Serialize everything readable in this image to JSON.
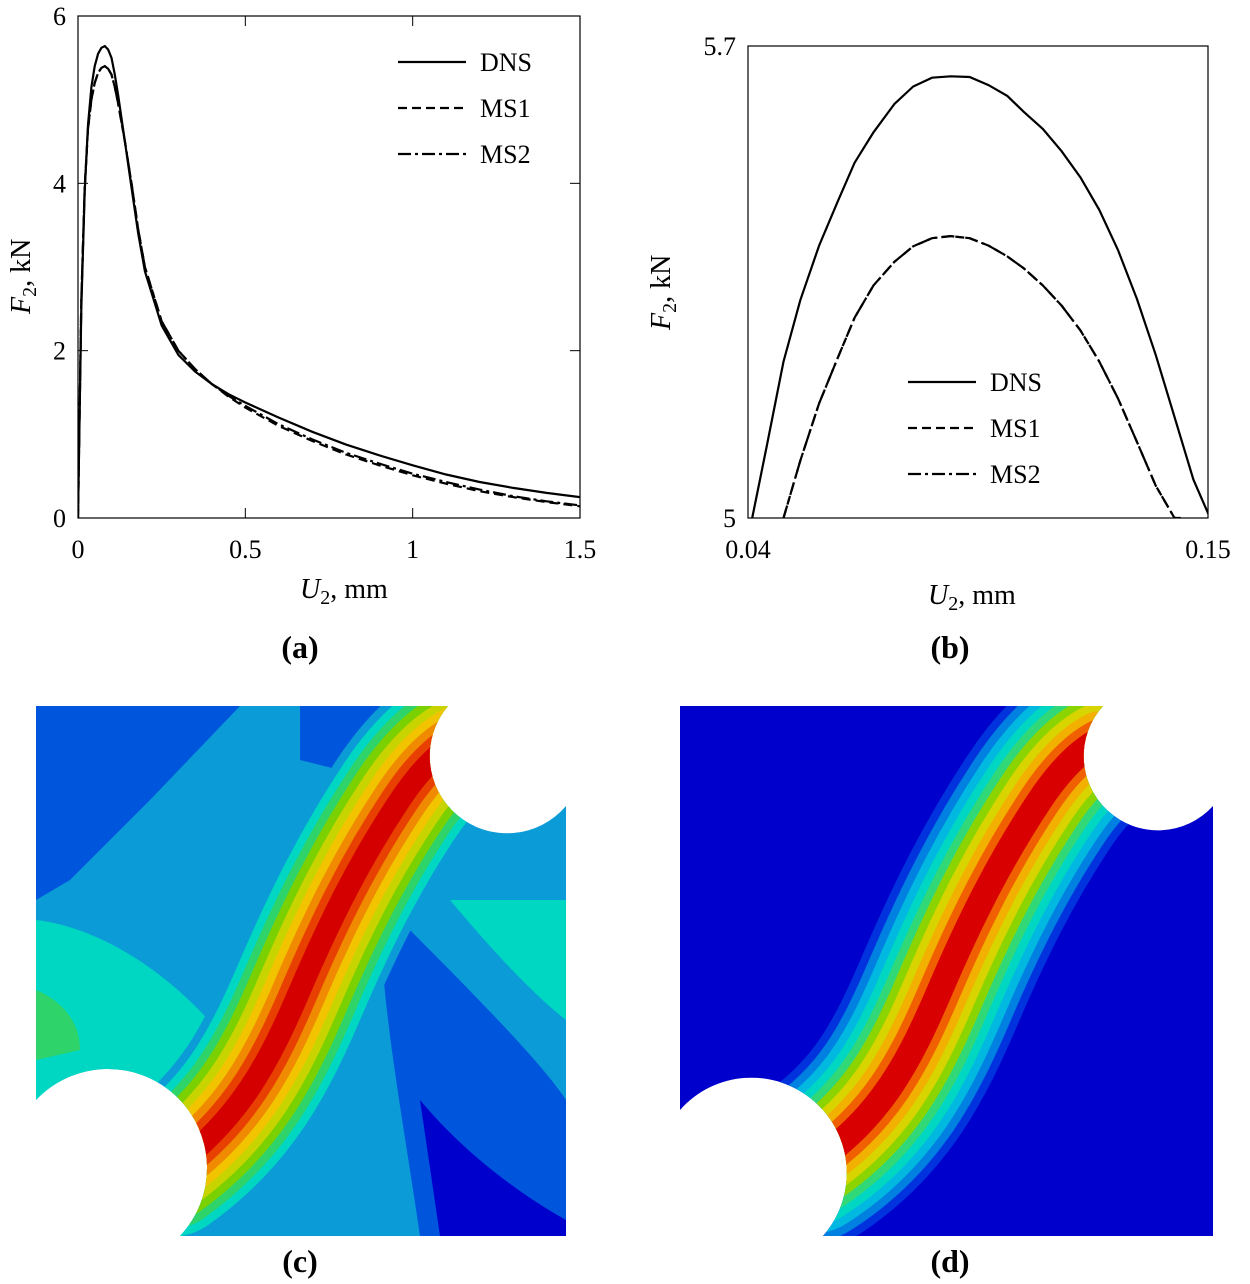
{
  "chart_data": [
    {
      "type": "line",
      "panel_label": "(a)",
      "xlabel_symbol": "U",
      "xlabel_sub": "2",
      "xlabel_unit": ", mm",
      "ylabel_symbol": "F",
      "ylabel_sub": "2",
      "ylabel_unit": ", kN",
      "xlim": [
        0,
        1.5
      ],
      "ylim": [
        0,
        6
      ],
      "xticks": [
        "0",
        "0.5",
        "1",
        "1.5"
      ],
      "yticks": [
        "0",
        "2",
        "4",
        "6"
      ],
      "legend_position": "top-right",
      "series": [
        {
          "name": "DNS",
          "style": "solid",
          "x": [
            0,
            0.01,
            0.02,
            0.03,
            0.04,
            0.05,
            0.06,
            0.07,
            0.08,
            0.09,
            0.1,
            0.11,
            0.12,
            0.14,
            0.16,
            0.18,
            0.2,
            0.25,
            0.3,
            0.35,
            0.4,
            0.45,
            0.5,
            0.6,
            0.7,
            0.8,
            0.9,
            1.0,
            1.1,
            1.2,
            1.3,
            1.4,
            1.5
          ],
          "y": [
            0,
            2.5,
            3.9,
            4.7,
            5.15,
            5.4,
            5.55,
            5.62,
            5.64,
            5.6,
            5.5,
            5.3,
            5.05,
            4.5,
            3.95,
            3.4,
            2.95,
            2.3,
            1.95,
            1.75,
            1.6,
            1.48,
            1.38,
            1.2,
            1.03,
            0.88,
            0.75,
            0.63,
            0.52,
            0.43,
            0.36,
            0.3,
            0.25
          ]
        },
        {
          "name": "MS1",
          "style": "dashed",
          "x": [
            0,
            0.01,
            0.02,
            0.03,
            0.04,
            0.05,
            0.06,
            0.07,
            0.08,
            0.09,
            0.1,
            0.11,
            0.12,
            0.14,
            0.16,
            0.18,
            0.2,
            0.25,
            0.3,
            0.35,
            0.4,
            0.45,
            0.5,
            0.6,
            0.7,
            0.8,
            0.9,
            1.0,
            1.1,
            1.2,
            1.3,
            1.4,
            1.5
          ],
          "y": [
            0,
            2.6,
            3.95,
            4.65,
            5.0,
            5.2,
            5.32,
            5.38,
            5.4,
            5.37,
            5.3,
            5.15,
            4.95,
            4.5,
            4.0,
            3.45,
            3.0,
            2.35,
            2.0,
            1.78,
            1.6,
            1.45,
            1.32,
            1.1,
            0.92,
            0.76,
            0.63,
            0.51,
            0.41,
            0.32,
            0.25,
            0.19,
            0.14
          ]
        },
        {
          "name": "MS2",
          "style": "dashdot",
          "x": [
            0,
            0.01,
            0.02,
            0.03,
            0.04,
            0.05,
            0.06,
            0.07,
            0.08,
            0.09,
            0.1,
            0.11,
            0.12,
            0.14,
            0.16,
            0.18,
            0.2,
            0.25,
            0.3,
            0.35,
            0.4,
            0.45,
            0.5,
            0.6,
            0.7,
            0.8,
            0.9,
            1.0,
            1.1,
            1.2,
            1.3,
            1.4,
            1.5
          ],
          "y": [
            0,
            2.6,
            3.95,
            4.65,
            5.0,
            5.2,
            5.32,
            5.38,
            5.4,
            5.37,
            5.3,
            5.15,
            4.95,
            4.5,
            4.0,
            3.45,
            3.0,
            2.35,
            2.0,
            1.78,
            1.6,
            1.46,
            1.34,
            1.12,
            0.94,
            0.78,
            0.65,
            0.53,
            0.43,
            0.34,
            0.26,
            0.2,
            0.15
          ]
        }
      ]
    },
    {
      "type": "line",
      "panel_label": "(b)",
      "xlabel_symbol": "U",
      "xlabel_sub": "2",
      "xlabel_unit": ", mm",
      "ylabel_symbol": "F",
      "ylabel_sub": "2",
      "ylabel_unit": ", kN",
      "xlim": [
        0.04,
        0.15
      ],
      "ylim": [
        5,
        5.7
      ],
      "xticks": [
        "0.04",
        "0.15"
      ],
      "yticks": [
        "5",
        "5.7"
      ],
      "legend_position": "bottom-center",
      "series": [
        {
          "name": "DNS",
          "style": "solid",
          "x": [
            0.041,
            0.0445,
            0.0485,
            0.0525,
            0.057,
            0.0615,
            0.0655,
            0.07,
            0.075,
            0.0795,
            0.084,
            0.0885,
            0.093,
            0.0975,
            0.102,
            0.106,
            0.1105,
            0.115,
            0.1195,
            0.124,
            0.1285,
            0.133,
            0.1375,
            0.142,
            0.1465,
            0.1505
          ],
          "y": [
            5.0,
            5.107,
            5.232,
            5.323,
            5.404,
            5.47,
            5.527,
            5.572,
            5.614,
            5.64,
            5.653,
            5.655,
            5.654,
            5.642,
            5.626,
            5.602,
            5.577,
            5.544,
            5.505,
            5.457,
            5.397,
            5.325,
            5.242,
            5.15,
            5.057,
            5.0
          ]
        },
        {
          "name": "MS1",
          "style": "dashed",
          "x": [
            0.0485,
            0.0525,
            0.057,
            0.0615,
            0.0655,
            0.07,
            0.075,
            0.0795,
            0.084,
            0.0885,
            0.093,
            0.0975,
            0.102,
            0.106,
            0.1105,
            0.115,
            0.1195,
            0.124,
            0.1285,
            0.133,
            0.1375,
            0.142,
            0.1435
          ],
          "y": [
            5.0,
            5.085,
            5.17,
            5.238,
            5.297,
            5.345,
            5.38,
            5.403,
            5.415,
            5.418,
            5.415,
            5.404,
            5.388,
            5.37,
            5.345,
            5.315,
            5.278,
            5.232,
            5.177,
            5.113,
            5.048,
            5.0,
            5.0
          ]
        },
        {
          "name": "MS2",
          "style": "dashdot",
          "x": [
            0.0485,
            0.0525,
            0.057,
            0.0615,
            0.0655,
            0.07,
            0.075,
            0.0795,
            0.084,
            0.0885,
            0.093,
            0.0975,
            0.102,
            0.106,
            0.1105,
            0.115,
            0.1195,
            0.124,
            0.1285,
            0.133,
            0.1375,
            0.142,
            0.1435
          ],
          "y": [
            5.0,
            5.085,
            5.17,
            5.238,
            5.297,
            5.345,
            5.38,
            5.403,
            5.415,
            5.418,
            5.415,
            5.404,
            5.388,
            5.37,
            5.345,
            5.315,
            5.278,
            5.232,
            5.177,
            5.113,
            5.048,
            5.0,
            5.0
          ]
        }
      ]
    }
  ],
  "contour_panels": [
    {
      "panel_label": "(c)",
      "background_color": "#0b9bd6",
      "band_colors": [
        "#0000cc",
        "#0055dd",
        "#0b9bd6",
        "#00d7c3",
        "#2ed46a",
        "#7bd000",
        "#c8d400",
        "#f2c400",
        "#f08a00",
        "#e84000",
        "#d40000"
      ]
    },
    {
      "panel_label": "(d)",
      "background_color": "#0000cc",
      "band_colors": [
        "#0033dd",
        "#0080e0",
        "#00b8e0",
        "#00d7c3",
        "#30d878",
        "#8cd400",
        "#d8d400",
        "#f2b000",
        "#f06000",
        "#d80000"
      ]
    }
  ]
}
